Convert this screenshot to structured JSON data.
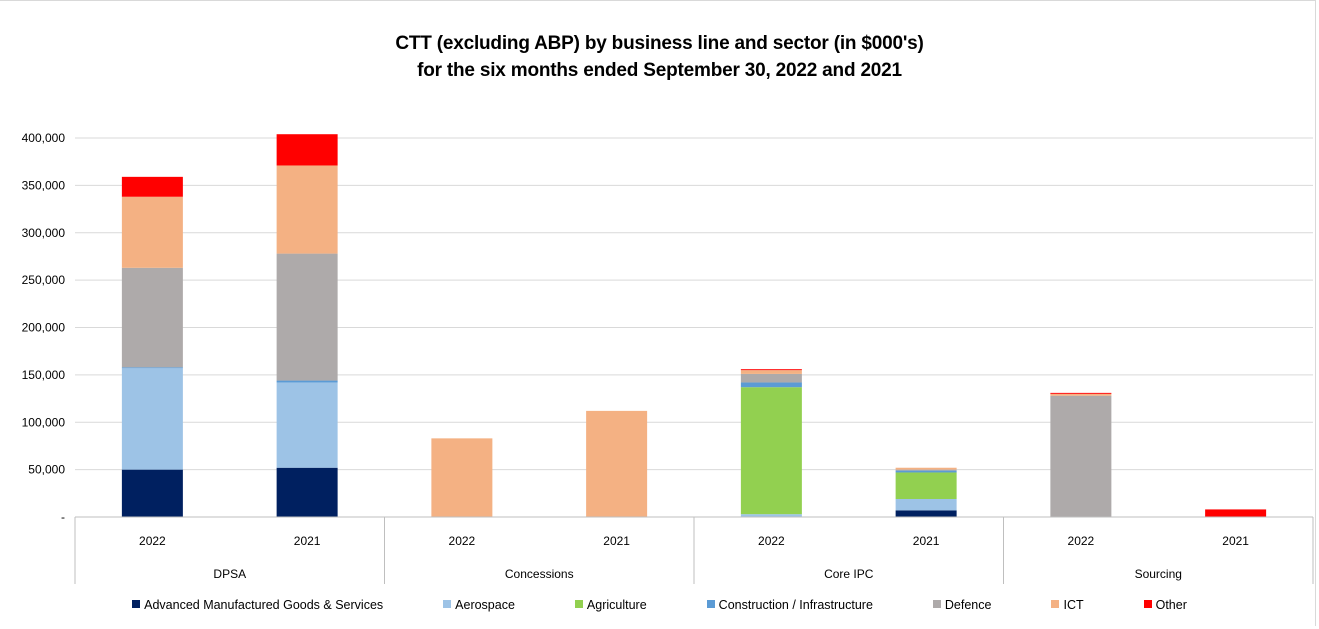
{
  "title_line1": "CTT (excluding ABP) by business line and sector (in $000's)",
  "title_line2": "for the six months ended September 30, 2022 and 2021",
  "colors": {
    "grid": "#d9d9d9",
    "axis": "#bfbfbf"
  },
  "chart_data": {
    "type": "bar",
    "stacked": true,
    "title": "CTT (excluding ABP) by business line and sector (in $000's) for the six months ended September 30, 2022 and 2021",
    "groups": [
      "DPSA",
      "Concessions",
      "Core IPC",
      "Sourcing"
    ],
    "categories": [
      "2022",
      "2021",
      "2022",
      "2021",
      "2022",
      "2021",
      "2022",
      "2021"
    ],
    "ylim": [
      0,
      400000
    ],
    "yticks": [
      {
        "value": 0,
        "label": "-"
      },
      {
        "value": 50000,
        "label": "50,000"
      },
      {
        "value": 100000,
        "label": "100,000"
      },
      {
        "value": 150000,
        "label": "150,000"
      },
      {
        "value": 200000,
        "label": "200,000"
      },
      {
        "value": 250000,
        "label": "250,000"
      },
      {
        "value": 300000,
        "label": "300,000"
      },
      {
        "value": 350000,
        "label": "350,000"
      },
      {
        "value": 400000,
        "label": "400,000"
      }
    ],
    "grid": true,
    "legend_position": "bottom",
    "series": [
      {
        "name": "Advanced Manufactured Goods & Services",
        "color": "#002060",
        "values": [
          50000,
          52000,
          0,
          0,
          0,
          7000,
          0,
          0
        ]
      },
      {
        "name": "Aerospace",
        "color": "#9dc3e6",
        "values": [
          107000,
          90000,
          0,
          0,
          3000,
          12000,
          0,
          0
        ]
      },
      {
        "name": "Agriculture",
        "color": "#92d050",
        "values": [
          0,
          0,
          0,
          0,
          134000,
          28000,
          0,
          0
        ]
      },
      {
        "name": "Construction / Infrastructure",
        "color": "#5b9bd5",
        "values": [
          1000,
          2000,
          0,
          0,
          5000,
          2000,
          0,
          0
        ]
      },
      {
        "name": "Defence",
        "color": "#aeaaaa",
        "values": [
          105000,
          134000,
          0,
          0,
          9000,
          1000,
          128000,
          0
        ]
      },
      {
        "name": "ICT",
        "color": "#f4b183",
        "values": [
          75000,
          93000,
          83000,
          112000,
          4000,
          2000,
          2000,
          0
        ]
      },
      {
        "name": "Other",
        "color": "#ff0000",
        "values": [
          21000,
          33000,
          0,
          0,
          1000,
          0,
          1000,
          8000
        ]
      }
    ]
  }
}
